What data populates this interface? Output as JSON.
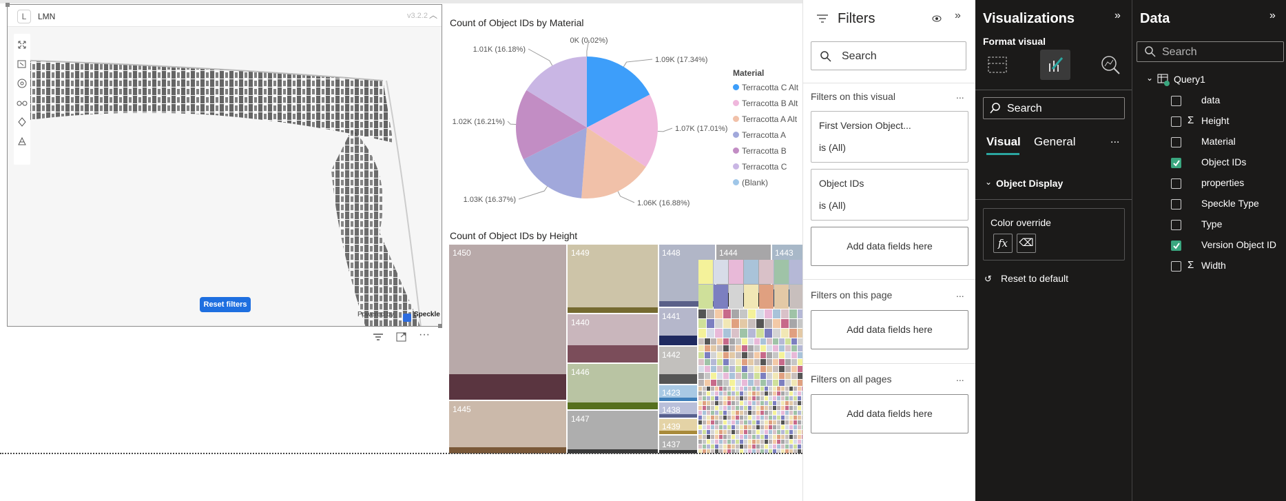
{
  "viewer": {
    "badge": "L",
    "title": "LMN",
    "version": "v3.2.2",
    "reset_label": "Reset filters",
    "powered_label": "Powered by",
    "brand": "Speckle"
  },
  "pie_chart": {
    "title": "Count of Object IDs by Material",
    "legend_title": "Material"
  },
  "treemap": {
    "title": "Count of Object IDs by Height"
  },
  "chart_data": [
    {
      "type": "pie",
      "title": "Count of Object IDs by Material",
      "legend_title": "Material",
      "categories": [
        "Terracotta C Alt",
        "Terracotta B Alt",
        "Terracotta A Alt",
        "Terracotta A",
        "Terracotta B",
        "Terracotta C",
        "(Blank)"
      ],
      "labels": [
        "1.09K (17.34%)",
        "1.07K (17.01%)",
        "1.06K (16.88%)",
        "1.03K (16.37%)",
        "1.02K (16.21%)",
        "1.01K (16.18%)",
        "0K (0.02%)"
      ],
      "percents": [
        17.34,
        17.01,
        16.88,
        16.37,
        16.21,
        16.18,
        0.02
      ],
      "colors": [
        "#3d9efa",
        "#efb7dc",
        "#f1c1a9",
        "#a1a8db",
        "#c28dc4",
        "#c9b6e4",
        "#9fc6e8"
      ],
      "legend_position": "right"
    },
    {
      "type": "treemap",
      "title": "Count of Object IDs by Height",
      "labels": [
        "1450",
        "1445",
        "1449",
        "1440",
        "1446",
        "1447",
        "1448",
        "1444",
        "1443",
        "1441",
        "1442",
        "1423",
        "1438",
        "1439",
        "1437"
      ]
    }
  ],
  "filters": {
    "title": "Filters",
    "search_placeholder": "Search",
    "on_visual": "Filters on this visual",
    "card1_title": "First Version Object...",
    "card1_value": "is (All)",
    "card2_title": "Object IDs",
    "card2_value": "is (All)",
    "add_fields": "Add data fields here",
    "on_page": "Filters on this page",
    "on_all_pages": "Filters on all pages",
    "more": "..."
  },
  "visualizations": {
    "title": "Visualizations",
    "subtitle": "Format visual",
    "search_placeholder": "Search",
    "tab_visual": "Visual",
    "tab_general": "General",
    "more": "...",
    "section": "Object Display",
    "color_override": "Color override",
    "fx": "fx",
    "reset": "Reset to default"
  },
  "data_pane": {
    "title": "Data",
    "search_placeholder": "Search",
    "table": "Query1",
    "fields": [
      {
        "name": "data",
        "checked": false,
        "sigma": false
      },
      {
        "name": "Height",
        "checked": false,
        "sigma": true
      },
      {
        "name": "Material",
        "checked": false,
        "sigma": false
      },
      {
        "name": "Object IDs",
        "checked": true,
        "sigma": false
      },
      {
        "name": "properties",
        "checked": false,
        "sigma": false
      },
      {
        "name": "Speckle Type",
        "checked": false,
        "sigma": false
      },
      {
        "name": "Type",
        "checked": false,
        "sigma": false
      },
      {
        "name": "Version Object ID",
        "checked": true,
        "sigma": false
      },
      {
        "name": "Width",
        "checked": false,
        "sigma": true
      }
    ]
  }
}
